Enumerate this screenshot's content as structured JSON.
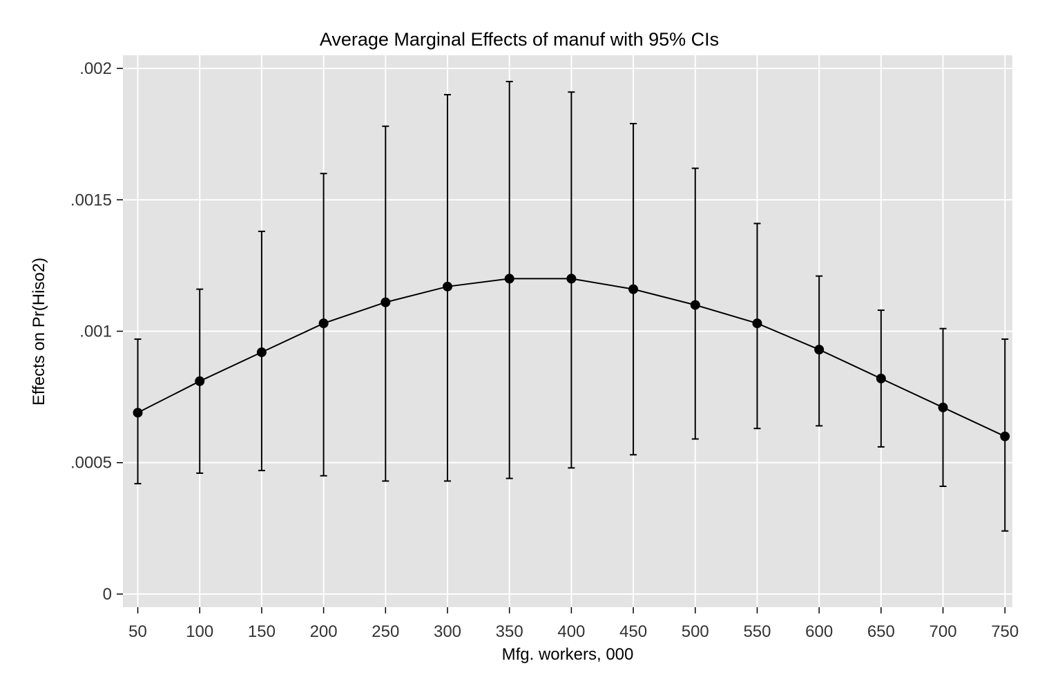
{
  "chart_data": {
    "type": "scatter",
    "title": "Average Marginal Effects of manuf with 95% CIs",
    "xlabel": "Mfg. workers, 000",
    "ylabel": "Effects on Pr(Hiso2)",
    "x_ticks": [
      "50",
      "100",
      "150",
      "200",
      "250",
      "300",
      "350",
      "400",
      "450",
      "500",
      "550",
      "600",
      "650",
      "700",
      "750"
    ],
    "y_ticks": [
      {
        "value": 0,
        "label": "0"
      },
      {
        "value": 0.0005,
        "label": ".0005"
      },
      {
        "value": 0.001,
        "label": ".001"
      },
      {
        "value": 0.0015,
        "label": ".0015"
      },
      {
        "value": 0.002,
        "label": ".002"
      }
    ],
    "xlim": [
      38,
      756
    ],
    "ylim": [
      -5e-05,
      0.00205
    ],
    "grid": true,
    "connected": true,
    "series": [
      {
        "x": [
          50,
          100,
          150,
          200,
          250,
          300,
          350,
          400,
          450,
          500,
          550,
          600,
          650,
          700,
          750
        ],
        "y": [
          0.00069,
          0.00081,
          0.00092,
          0.00103,
          0.00111,
          0.00117,
          0.0012,
          0.0012,
          0.00116,
          0.0011,
          0.00103,
          0.00093,
          0.00082,
          0.00071,
          0.0006
        ],
        "ci_lower": [
          0.00042,
          0.00046,
          0.00047,
          0.00045,
          0.00043,
          0.00043,
          0.00044,
          0.00048,
          0.00053,
          0.00059,
          0.00063,
          0.00064,
          0.00056,
          0.00041,
          0.00024
        ],
        "ci_upper": [
          0.00097,
          0.00116,
          0.00138,
          0.0016,
          0.00178,
          0.0019,
          0.00195,
          0.00191,
          0.00179,
          0.00162,
          0.00141,
          0.00121,
          0.00108,
          0.00101,
          0.00097
        ]
      }
    ]
  },
  "colors": {
    "plot_background": "#e3e3e3",
    "grid": "#ffffff",
    "marker": "#000000",
    "line": "#000000"
  }
}
